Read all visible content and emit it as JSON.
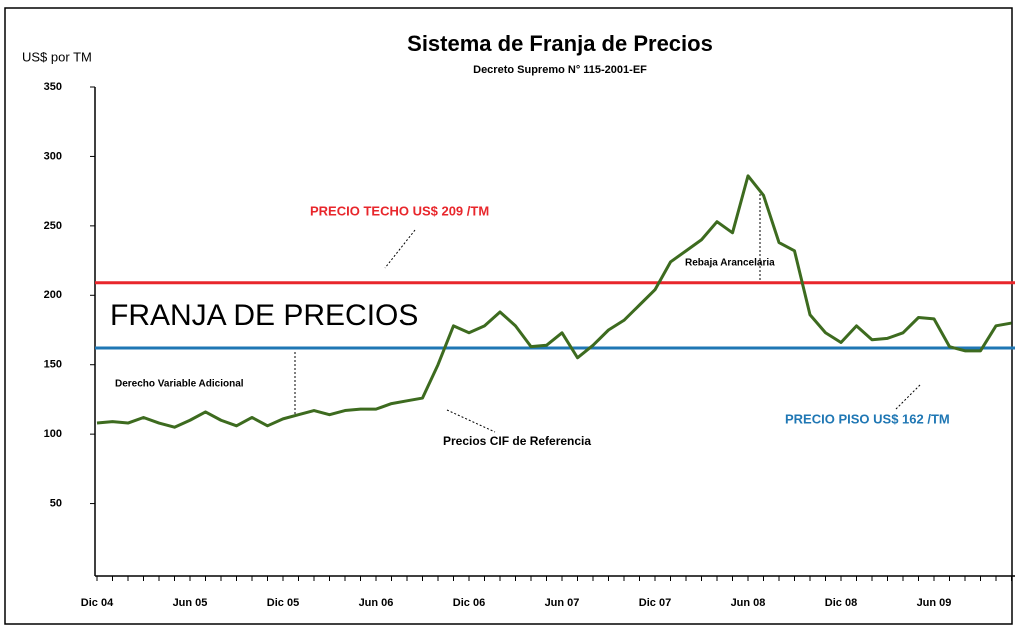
{
  "chart_data": {
    "type": "line",
    "title": "Sistema de Franja de Precios",
    "subtitle": "Decreto Supremo N° 115-2001-EF",
    "ylabel": "US$ por TM",
    "categories": [
      "Dic 04",
      null,
      null,
      null,
      null,
      null,
      "Jun 05",
      null,
      null,
      null,
      null,
      null,
      "Dic 05",
      null,
      null,
      null,
      null,
      null,
      "Jun 06",
      null,
      null,
      null,
      null,
      null,
      "Dic 06",
      null,
      null,
      null,
      null,
      null,
      "Jun 07",
      null,
      null,
      null,
      null,
      null,
      "Dic 07",
      null,
      null,
      null,
      null,
      null,
      "Jun 08",
      null,
      null,
      null,
      null,
      null,
      "Dic 08",
      null,
      null,
      null,
      null,
      null,
      "Jun 09",
      null,
      null,
      null,
      null,
      null
    ],
    "series": [
      {
        "name": "Precios CIF de Referencia",
        "color": "#3d6b1f",
        "values": [
          108,
          109,
          108,
          112,
          108,
          105,
          110,
          116,
          110,
          106,
          112,
          106,
          111,
          114,
          117,
          114,
          117,
          118,
          118,
          122,
          124,
          126,
          150,
          178,
          173,
          178,
          188,
          178,
          163,
          164,
          173,
          155,
          164,
          175,
          182,
          193,
          204,
          224,
          232,
          240,
          253,
          245,
          286,
          272,
          238,
          232,
          186,
          173,
          166,
          178,
          168,
          169,
          173,
          184,
          183,
          163,
          160,
          160,
          178,
          180
        ]
      }
    ],
    "reference_lines": [
      {
        "name": "PRECIO TECHO US$ 209 /TM",
        "value": 209,
        "color": "#e8262b"
      },
      {
        "name": "PRECIO PISO US$ 162 /TM",
        "value": 162,
        "color": "#1f77b4"
      }
    ],
    "annotations": [
      "FRANJA DE PRECIOS",
      "Derecho Variable Adicional",
      "Precios CIF de Referencia",
      "Rebaja Arancelaria"
    ],
    "ylim": [
      0,
      350
    ],
    "yticks": [
      50,
      100,
      150,
      200,
      250,
      300,
      350
    ]
  }
}
